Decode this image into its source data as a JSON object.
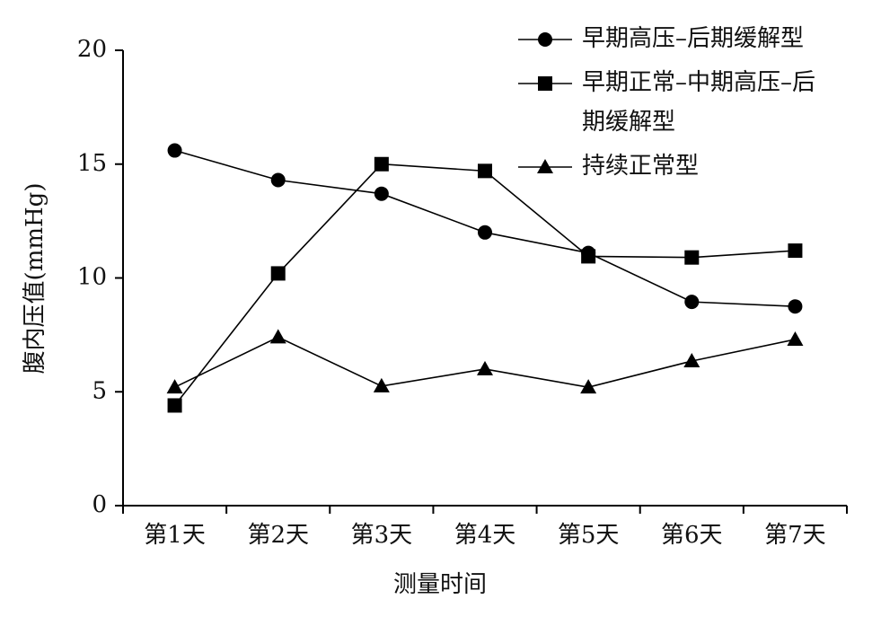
{
  "chart_data": {
    "type": "line",
    "y_label": "腹内压值(mmHg)",
    "x_label": "测量时间",
    "categories": [
      "第1天",
      "第2天",
      "第3天",
      "第4天",
      "第5天",
      "第6天",
      "第7天"
    ],
    "ylim": [
      0,
      20
    ],
    "yticks": [
      0,
      5,
      10,
      15,
      20
    ],
    "series": [
      {
        "name": "早期高压–后期缓解型",
        "color": "#000000",
        "marker": "circle",
        "values": [
          15.6,
          14.3,
          13.7,
          12.0,
          11.1,
          8.95,
          8.75
        ]
      },
      {
        "name": "早期正常–中期高压–后期缓解型",
        "color": "#000000",
        "marker": "square",
        "values": [
          4.4,
          10.2,
          15.0,
          14.7,
          10.95,
          10.9,
          11.2
        ]
      },
      {
        "name": "持续正常型",
        "color": "#000000",
        "marker": "triangle",
        "values": [
          5.2,
          7.4,
          5.25,
          6.0,
          5.2,
          6.35,
          7.3
        ]
      }
    ]
  }
}
